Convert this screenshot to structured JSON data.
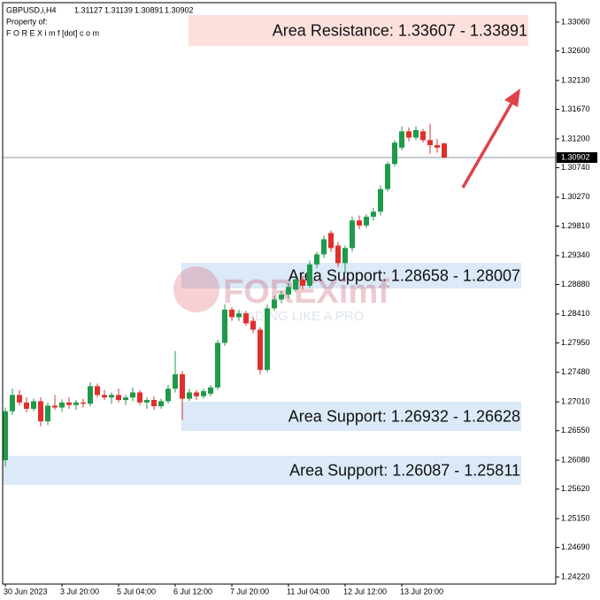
{
  "chart_data": {
    "type": "candlestick",
    "symbol": "GBPUSD,i,H4",
    "owner_label": "Property of:",
    "owner": "F O R E X i m f [dot] c o m",
    "watermark": {
      "brand": "FOREXimf",
      "tagline": "TRADING LIKE A PRO"
    },
    "up_color": "#1f9a4a",
    "down_color": "#e0302c",
    "categories": [
      "30 Jun 2023",
      null,
      null,
      null,
      null,
      null,
      null,
      null,
      "3 Jul 20:00",
      null,
      null,
      null,
      null,
      null,
      null,
      null,
      "5 Jul 04:00",
      null,
      null,
      null,
      null,
      null,
      null,
      null,
      "6 Jul 12:00",
      null,
      null,
      null,
      null,
      null,
      null,
      null,
      "7 Jul 20:00",
      null,
      null,
      null,
      null,
      null,
      null,
      null,
      "11 Jul 04:00",
      null,
      null,
      null,
      null,
      null,
      null,
      null,
      "12 Jul 12:00",
      null,
      null,
      null,
      null,
      null,
      null,
      null,
      "13 Jul 20:00",
      null,
      null,
      null,
      null,
      null,
      null
    ],
    "open": [
      1.2608,
      1.2686,
      1.2712,
      1.27,
      1.269,
      1.2702,
      1.267,
      1.2695,
      1.2692,
      1.27,
      1.2696,
      1.27,
      1.2698,
      1.2726,
      1.2712,
      1.2708,
      1.2712,
      1.2704,
      1.2708,
      1.2716,
      1.27,
      1.2704,
      1.2694,
      1.2702,
      1.2722,
      1.2745,
      1.2706,
      1.2716,
      1.271,
      1.2714,
      1.2724,
      1.2795,
      1.2848,
      1.2836,
      1.2842,
      1.283,
      1.2816,
      1.2752,
      1.285,
      1.2864,
      1.2872,
      1.288,
      1.2896,
      1.2886,
      1.292,
      1.2936,
      1.297,
      1.295,
      1.2922,
      1.2946,
      1.299,
      1.2982,
      1.2996,
      1.3004,
      1.304,
      1.308,
      1.3106,
      1.3132,
      1.3122,
      1.3132,
      1.3118,
      1.311,
      1.31127
    ],
    "high": [
      1.2692,
      1.2722,
      1.272,
      1.2708,
      1.2706,
      1.2708,
      1.27,
      1.2712,
      1.2705,
      1.2708,
      1.2704,
      1.2706,
      1.2732,
      1.273,
      1.272,
      1.2716,
      1.2722,
      1.2712,
      1.2724,
      1.272,
      1.2708,
      1.271,
      1.2706,
      1.2728,
      1.2782,
      1.275,
      1.2722,
      1.272,
      1.2722,
      1.2728,
      1.28,
      1.2856,
      1.2852,
      1.2848,
      1.2846,
      1.2836,
      1.282,
      1.2856,
      1.287,
      1.2878,
      1.289,
      1.29,
      1.2902,
      1.2926,
      1.294,
      1.2966,
      1.2974,
      1.2956,
      1.295,
      1.2996,
      1.2998,
      1.3,
      1.301,
      1.3046,
      1.3084,
      1.3118,
      1.314,
      1.3138,
      1.314,
      1.3136,
      1.3144,
      1.312,
      1.31139
    ],
    "low": [
      1.2598,
      1.268,
      1.2695,
      1.2684,
      1.2686,
      1.2662,
      1.2664,
      1.2688,
      1.2685,
      1.269,
      1.2688,
      1.2692,
      1.2694,
      1.2708,
      1.2704,
      1.2698,
      1.27,
      1.2696,
      1.2702,
      1.2696,
      1.269,
      1.2688,
      1.269,
      1.2698,
      1.2716,
      1.2672,
      1.2702,
      1.2704,
      1.2706,
      1.271,
      1.272,
      1.279,
      1.283,
      1.283,
      1.2822,
      1.281,
      1.2745,
      1.2748,
      1.2846,
      1.2858,
      1.2866,
      1.2876,
      1.288,
      1.2882,
      1.2914,
      1.293,
      1.294,
      1.2916,
      1.2906,
      1.294,
      1.2976,
      1.2978,
      1.299,
      1.2998,
      1.3036,
      1.3076,
      1.3102,
      1.3116,
      1.3118,
      1.3114,
      1.3096,
      1.3098,
      1.30891
    ],
    "close": [
      1.2686,
      1.2712,
      1.27,
      1.269,
      1.2702,
      1.267,
      1.2695,
      1.2692,
      1.27,
      1.2696,
      1.27,
      1.2698,
      1.2726,
      1.2712,
      1.2708,
      1.2712,
      1.2704,
      1.2708,
      1.2716,
      1.27,
      1.2704,
      1.2694,
      1.2702,
      1.2722,
      1.2745,
      1.2706,
      1.2716,
      1.271,
      1.2718,
      1.2724,
      1.2795,
      1.2848,
      1.2836,
      1.2842,
      1.2826,
      1.2816,
      1.2752,
      1.285,
      1.2864,
      1.2872,
      1.2884,
      1.2896,
      1.2886,
      1.292,
      1.2936,
      1.296,
      1.2946,
      1.2922,
      1.2946,
      1.299,
      1.2982,
      1.2996,
      1.3004,
      1.304,
      1.308,
      1.3114,
      1.3132,
      1.3122,
      1.3134,
      1.3118,
      1.311,
      1.3106,
      1.30902
    ],
    "last_price": 1.30902,
    "ylim": [
      1.24107,
      1.3337
    ],
    "yticks": [
      {
        "value": 1.3306,
        "label": "1.33060"
      },
      {
        "value": 1.326,
        "label": "1.32600"
      },
      {
        "value": 1.3213,
        "label": "1.32130"
      },
      {
        "value": 1.3167,
        "label": "1.31670"
      },
      {
        "value": 1.312,
        "label": "1.31200"
      },
      {
        "value": 1.3074,
        "label": "1.30740"
      },
      {
        "value": 1.3027,
        "label": "1.30270"
      },
      {
        "value": 1.2981,
        "label": "1.29810"
      },
      {
        "value": 1.2934,
        "label": "1.29340"
      },
      {
        "value": 1.2888,
        "label": "1.28880"
      },
      {
        "value": 1.2841,
        "label": "1.28410"
      },
      {
        "value": 1.2795,
        "label": "1.27950"
      },
      {
        "value": 1.2748,
        "label": "1.27480"
      },
      {
        "value": 1.2701,
        "label": "1.27010"
      },
      {
        "value": 1.2655,
        "label": "1.26550"
      },
      {
        "value": 1.2608,
        "label": "1.26080"
      },
      {
        "value": 1.2562,
        "label": "1.25620"
      },
      {
        "value": 1.2515,
        "label": "1.25150"
      },
      {
        "value": 1.2469,
        "label": "1.24690"
      },
      {
        "value": 1.2422,
        "label": "1.24220"
      }
    ],
    "annotations": [
      "Area Resistance: 1.33607 - 1.33891",
      "Area Support: 1.28658 - 1.28007",
      "Area Support: 1.26932 - 1.26628",
      "Area Support: 1.26087 - 1.25811"
    ]
  }
}
